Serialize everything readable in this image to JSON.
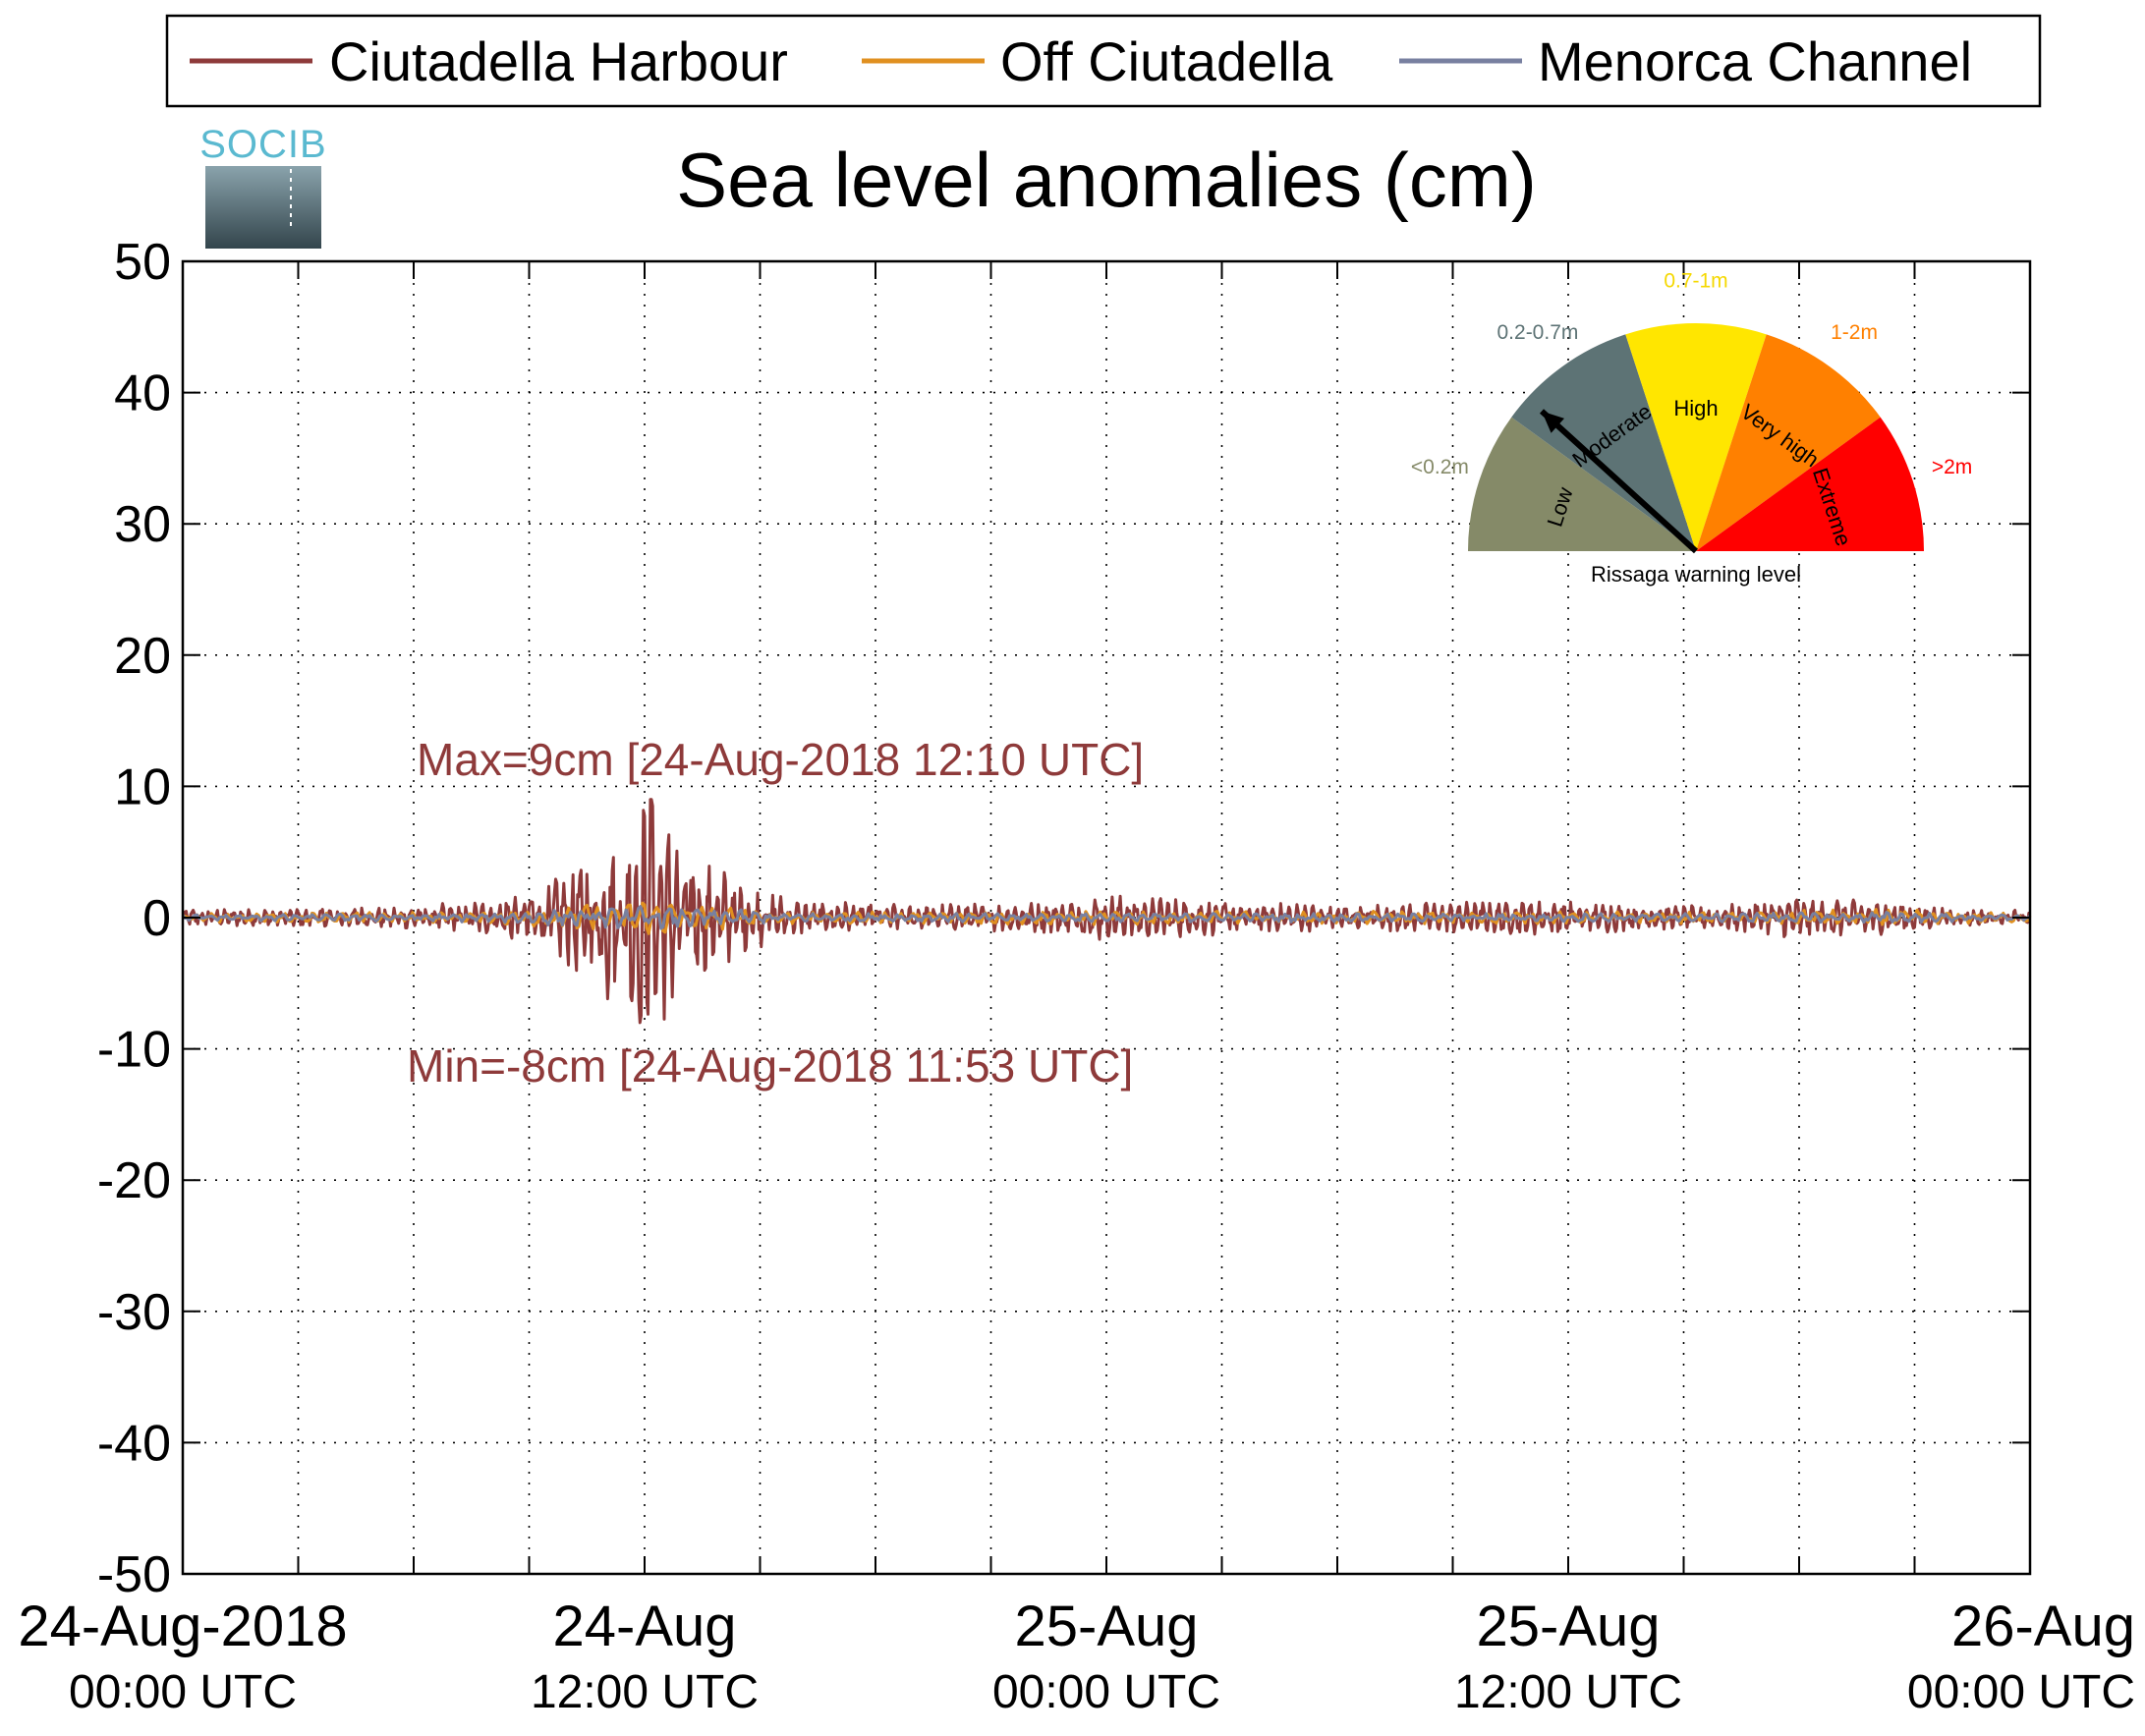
{
  "chart_data": {
    "type": "line",
    "title": "Sea level anomalies (cm)",
    "ylim": [
      -50,
      50
    ],
    "yticks": [
      50,
      40,
      30,
      20,
      10,
      0,
      -10,
      -20,
      -30,
      -40,
      -50
    ],
    "xlim_hours": [
      0,
      48
    ],
    "x_tick_labels": [
      {
        "hour": 0,
        "line1": "24-Aug-2018",
        "line2": "00:00 UTC"
      },
      {
        "hour": 12,
        "line1": "24-Aug",
        "line2": "12:00 UTC"
      },
      {
        "hour": 24,
        "line1": "25-Aug",
        "line2": "00:00 UTC"
      },
      {
        "hour": 36,
        "line1": "25-Aug",
        "line2": "12:00 UTC"
      },
      {
        "hour": 48,
        "line1": "26-Aug",
        "line2": "00:00 UTC"
      }
    ],
    "grid": true,
    "legend_position": "top",
    "series": [
      {
        "name": "Ciutadella Harbour",
        "color": "#8e3a3a",
        "envelope_hours": [
          0,
          2,
          4,
          6,
          8,
          9,
          10,
          11,
          11.5,
          12,
          12.5,
          13,
          14,
          15,
          16,
          18,
          20,
          22,
          24,
          26,
          28,
          30,
          32,
          34,
          36,
          38,
          40,
          42,
          44,
          46,
          48
        ],
        "envelope_cm": [
          0.6,
          0.6,
          0.7,
          0.8,
          1.2,
          2.0,
          3.5,
          6.0,
          7.0,
          8.5,
          7.0,
          5.0,
          3.5,
          2.0,
          1.2,
          1.0,
          0.9,
          1.0,
          1.6,
          1.3,
          1.0,
          0.9,
          1.0,
          1.1,
          1.2,
          0.8,
          0.8,
          1.5,
          1.2,
          0.6,
          0.5
        ],
        "max_cm": 9,
        "min_cm": -8
      },
      {
        "name": "Off Ciutadella",
        "color": "#e09020",
        "envelope_hours": [
          0,
          8,
          10,
          12,
          14,
          16,
          24,
          36,
          40,
          44,
          48
        ],
        "envelope_cm": [
          0.3,
          0.4,
          0.9,
          1.3,
          0.9,
          0.4,
          0.5,
          0.4,
          0.4,
          0.6,
          0.3
        ]
      },
      {
        "name": "Menorca Channel",
        "color": "#7880a0",
        "envelope_hours": [
          0,
          8,
          10,
          12,
          14,
          16,
          24,
          36,
          40,
          44,
          48
        ],
        "envelope_cm": [
          0.2,
          0.3,
          0.6,
          0.8,
          0.6,
          0.3,
          0.3,
          0.3,
          0.3,
          0.4,
          0.2
        ]
      }
    ],
    "annotations": [
      {
        "text": "Max=9cm [24-Aug-2018 12:10 UTC]",
        "color": "#8e3a3a"
      },
      {
        "text": "Min=-8cm [24-Aug-2018 11:53 UTC]",
        "color": "#8e3a3a"
      }
    ]
  },
  "logo_text": "SOCIB",
  "gauge": {
    "caption": "Rissaga warning level",
    "needle_fraction": 0.12,
    "sectors": [
      {
        "label": "Low",
        "range": "<0.2m",
        "color": "#858a68",
        "range_color": "#858a68"
      },
      {
        "label": "Moderate",
        "range": "0.2-0.7m",
        "color": "#5d7375",
        "range_color": "#5d7375"
      },
      {
        "label": "High",
        "range": "0.7-1m",
        "color": "#ffe600",
        "range_color": "#f5d800"
      },
      {
        "label": "Very high",
        "range": "1-2m",
        "color": "#ff8000",
        "range_color": "#ff8000"
      },
      {
        "label": "Extreme",
        "range": ">2m",
        "color": "#ff0000",
        "range_color": "#ff0000"
      }
    ]
  }
}
